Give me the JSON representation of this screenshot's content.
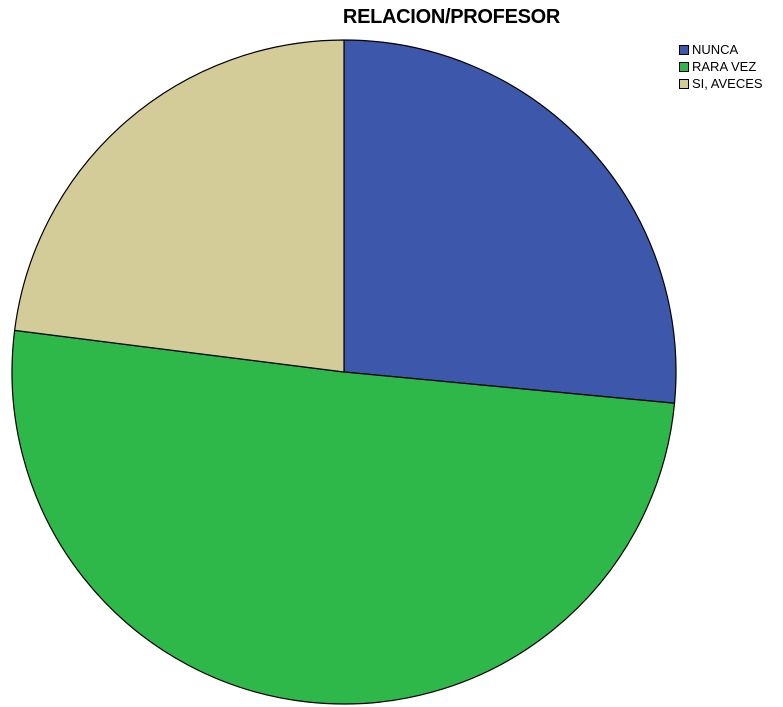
{
  "chart_data": {
    "type": "pie",
    "title": "RELACION/PROFESOR",
    "categories": [
      "NUNCA",
      "RARA VEZ",
      "SI, AVECES"
    ],
    "values": [
      26.5,
      50.5,
      23.0
    ],
    "unit": "percent",
    "start_angle_deg": 0,
    "direction": "clockwise",
    "colors": [
      "#3d57ab",
      "#2fb84a",
      "#d3cc98"
    ],
    "legend_position": "top-right",
    "show_data_labels": false
  }
}
